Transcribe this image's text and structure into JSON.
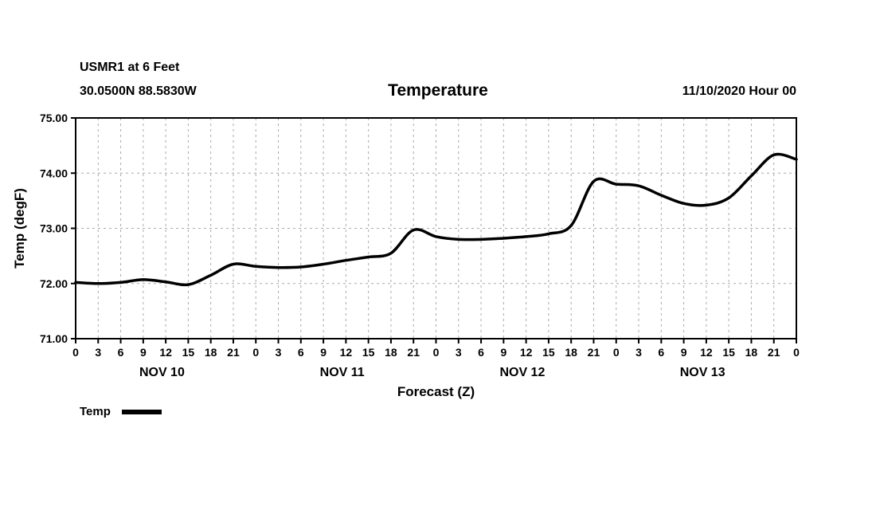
{
  "header": {
    "station_line": "USMR1 at 6 Feet",
    "coords_line": "30.0500N 88.5830W",
    "title": "Temperature",
    "datetime": "11/10/2020 Hour 00"
  },
  "legend": {
    "label": "Temp",
    "color": "#000000"
  },
  "chart_data": {
    "type": "line",
    "title": "Temperature",
    "xlabel": "Forecast (Z)",
    "ylabel": "Temp (degF)",
    "ylim": [
      71.0,
      75.0
    ],
    "xlim_hours": [
      0,
      96
    ],
    "grid": "dashed",
    "grid_color": "#aaaaaa",
    "y_ticks": [
      {
        "value": 75.0,
        "label": "75.00"
      },
      {
        "value": 74.0,
        "label": "74.00"
      },
      {
        "value": 73.0,
        "label": "73.00"
      },
      {
        "value": 72.0,
        "label": "72.00"
      },
      {
        "value": 71.0,
        "label": "71.00"
      }
    ],
    "x_tick_hours": [
      0,
      3,
      6,
      9,
      12,
      15,
      18,
      21,
      24,
      27,
      30,
      33,
      36,
      39,
      42,
      45,
      48,
      51,
      54,
      57,
      60,
      63,
      66,
      69,
      72,
      75,
      78,
      81,
      84,
      87,
      90,
      93,
      96
    ],
    "x_tick_labels": [
      "0",
      "3",
      "6",
      "9",
      "12",
      "15",
      "18",
      "21",
      "0",
      "3",
      "6",
      "9",
      "12",
      "15",
      "18",
      "21",
      "0",
      "3",
      "6",
      "9",
      "12",
      "15",
      "18",
      "21",
      "0",
      "3",
      "6",
      "9",
      "12",
      "15",
      "18",
      "21",
      "0"
    ],
    "day_labels": [
      {
        "label": "NOV 10",
        "center_hour": 11.5
      },
      {
        "label": "NOV 11",
        "center_hour": 35.5
      },
      {
        "label": "NOV 12",
        "center_hour": 59.5
      },
      {
        "label": "NOV 13",
        "center_hour": 83.5
      }
    ],
    "series": [
      {
        "name": "Temp",
        "color": "#000000",
        "x": [
          0,
          3,
          6,
          9,
          12,
          15,
          18,
          21,
          24,
          27,
          30,
          33,
          36,
          39,
          42,
          45,
          48,
          51,
          54,
          57,
          60,
          63,
          66,
          69,
          72,
          75,
          78,
          81,
          84,
          87,
          90,
          93,
          96
        ],
        "values": [
          72.02,
          72.0,
          72.02,
          72.07,
          72.03,
          71.98,
          72.15,
          72.35,
          72.31,
          72.29,
          72.3,
          72.35,
          72.42,
          72.48,
          72.55,
          72.97,
          72.85,
          72.8,
          72.8,
          72.82,
          72.85,
          72.9,
          73.05,
          73.85,
          73.8,
          73.77,
          73.6,
          73.45,
          73.42,
          73.55,
          73.95,
          74.33,
          74.25
        ]
      }
    ]
  }
}
